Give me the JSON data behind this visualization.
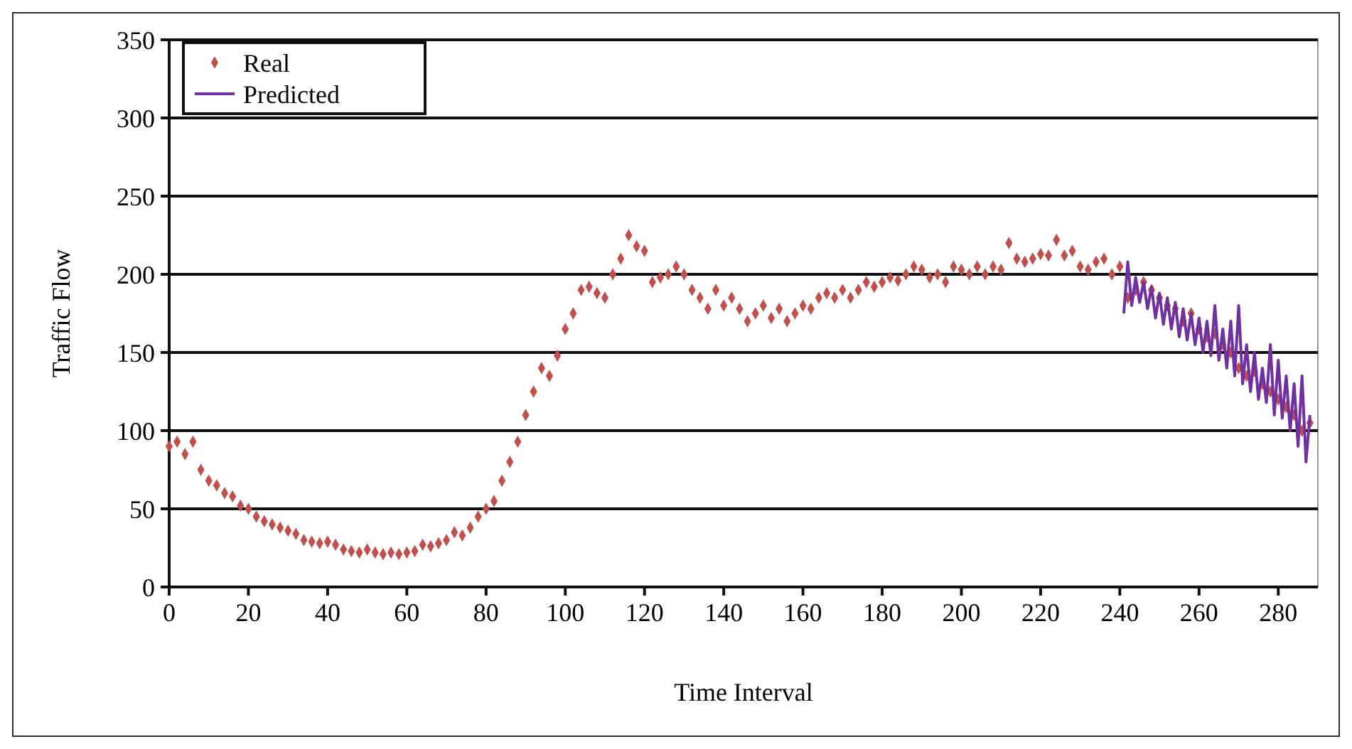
{
  "chart_data": {
    "type": "scatter",
    "xlabel": "Time Interval",
    "ylabel": "Traffic Flow",
    "xlim": [
      0,
      290
    ],
    "ylim": [
      0,
      350
    ],
    "xticks": [
      0,
      20,
      40,
      60,
      80,
      100,
      120,
      140,
      160,
      180,
      200,
      220,
      240,
      260,
      280
    ],
    "yticks": [
      0,
      50,
      100,
      150,
      200,
      250,
      300,
      350
    ],
    "grid": "y",
    "legend": "top left",
    "series": [
      {
        "name": "Real",
        "marker": "diamond",
        "color": "#c0504d",
        "x": [
          0,
          2,
          4,
          6,
          8,
          10,
          12,
          14,
          16,
          18,
          20,
          22,
          24,
          26,
          28,
          30,
          32,
          34,
          36,
          38,
          40,
          42,
          44,
          46,
          48,
          50,
          52,
          54,
          56,
          58,
          60,
          62,
          64,
          66,
          68,
          70,
          72,
          74,
          76,
          78,
          80,
          82,
          84,
          86,
          88,
          90,
          92,
          94,
          96,
          98,
          100,
          102,
          104,
          106,
          108,
          110,
          112,
          114,
          116,
          118,
          120,
          122,
          124,
          126,
          128,
          130,
          132,
          134,
          136,
          138,
          140,
          142,
          144,
          146,
          148,
          150,
          152,
          154,
          156,
          158,
          160,
          162,
          164,
          166,
          168,
          170,
          172,
          174,
          176,
          178,
          180,
          182,
          184,
          186,
          188,
          190,
          192,
          194,
          196,
          198,
          200,
          202,
          204,
          206,
          208,
          210,
          212,
          214,
          216,
          218,
          220,
          222,
          224,
          226,
          228,
          230,
          232,
          234,
          236,
          238,
          240,
          242,
          244,
          246,
          248,
          250,
          252,
          254,
          256,
          258,
          260,
          262,
          264,
          266,
          268,
          270,
          272,
          274,
          276,
          278,
          280,
          282,
          284,
          286,
          288
        ],
        "values": [
          90,
          93,
          85,
          93,
          75,
          68,
          65,
          60,
          58,
          52,
          50,
          45,
          42,
          40,
          38,
          36,
          34,
          30,
          29,
          28,
          29,
          27,
          24,
          23,
          22,
          24,
          22,
          21,
          22,
          21,
          22,
          23,
          27,
          26,
          28,
          30,
          35,
          33,
          38,
          45,
          50,
          55,
          68,
          80,
          93,
          110,
          125,
          140,
          135,
          148,
          165,
          175,
          190,
          192,
          188,
          185,
          200,
          210,
          225,
          218,
          215,
          195,
          198,
          200,
          205,
          200,
          190,
          185,
          178,
          190,
          180,
          185,
          178,
          170,
          175,
          180,
          172,
          178,
          170,
          175,
          180,
          178,
          185,
          188,
          185,
          190,
          185,
          190,
          195,
          192,
          195,
          198,
          196,
          200,
          205,
          203,
          198,
          200,
          195,
          205,
          203,
          200,
          205,
          200,
          205,
          203,
          220,
          210,
          208,
          210,
          213,
          212,
          222,
          212,
          215,
          205,
          203,
          208,
          210,
          200,
          205,
          185,
          190,
          195,
          190,
          185,
          180,
          178,
          170,
          175,
          165,
          160,
          162,
          155,
          150,
          140,
          135,
          138,
          130,
          125,
          120,
          115,
          110,
          100,
          105
        ]
      },
      {
        "name": "Predicted",
        "type": "line",
        "marker": "none",
        "line_style": "solid",
        "color": "#7030a0",
        "x": [
          241,
          242,
          243,
          244,
          245,
          246,
          247,
          248,
          249,
          250,
          251,
          252,
          253,
          254,
          255,
          256,
          257,
          258,
          259,
          260,
          261,
          262,
          263,
          264,
          265,
          266,
          267,
          268,
          269,
          270,
          271,
          272,
          273,
          274,
          275,
          276,
          277,
          278,
          279,
          280,
          281,
          282,
          283,
          284,
          285,
          286,
          287,
          288
        ],
        "values": [
          175,
          208,
          180,
          198,
          182,
          195,
          178,
          192,
          172,
          188,
          168,
          185,
          165,
          182,
          160,
          178,
          158,
          175,
          155,
          172,
          150,
          170,
          148,
          180,
          145,
          165,
          140,
          170,
          135,
          180,
          130,
          155,
          125,
          150,
          120,
          140,
          118,
          155,
          110,
          145,
          108,
          135,
          100,
          130,
          90,
          135,
          80,
          110
        ]
      }
    ]
  }
}
